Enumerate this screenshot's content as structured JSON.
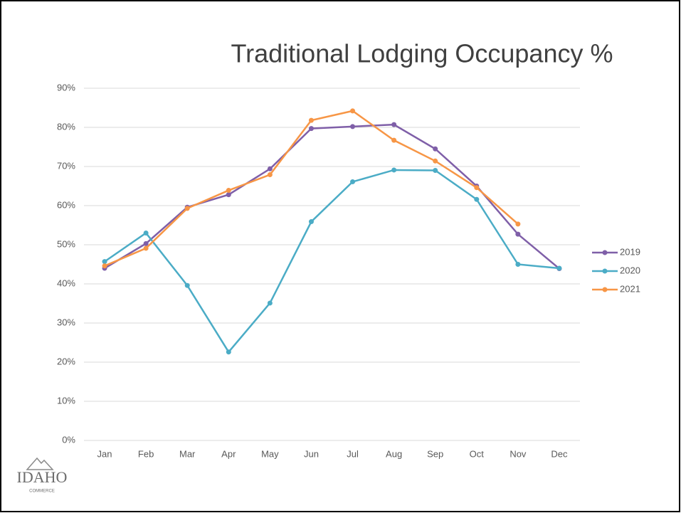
{
  "chart_data": {
    "type": "line",
    "title": "Traditional Lodging Occupancy %",
    "categories": [
      "Jan",
      "Feb",
      "Mar",
      "Apr",
      "May",
      "Jun",
      "Jul",
      "Aug",
      "Sep",
      "Oct",
      "Nov",
      "Dec"
    ],
    "series": [
      {
        "name": "2019",
        "color": "#7f5fa8",
        "values": [
          44,
          50.3,
          59.6,
          62.8,
          69.4,
          79.7,
          80.2,
          80.7,
          74.5,
          65,
          52.7,
          43.9
        ]
      },
      {
        "name": "2020",
        "color": "#4bacc6",
        "values": [
          45.7,
          53,
          39.6,
          22.6,
          35.1,
          55.9,
          66.1,
          69.1,
          69,
          61.6,
          45,
          44
        ]
      },
      {
        "name": "2021",
        "color": "#f79646",
        "values": [
          44.6,
          49.1,
          59.3,
          63.9,
          67.9,
          81.8,
          84.2,
          76.7,
          71.4,
          64.6,
          55.3,
          null
        ]
      }
    ],
    "ylim": [
      0,
      90
    ],
    "yticks": [
      {
        "value": 0,
        "label": "0%"
      },
      {
        "value": 10,
        "label": "10%"
      },
      {
        "value": 20,
        "label": "20%"
      },
      {
        "value": 30,
        "label": "30%"
      },
      {
        "value": 40,
        "label": "40%"
      },
      {
        "value": 50,
        "label": "50%"
      },
      {
        "value": 60,
        "label": "60%"
      },
      {
        "value": 70,
        "label": "70%"
      },
      {
        "value": 80,
        "label": "80%"
      },
      {
        "value": 90,
        "label": "90%"
      }
    ],
    "grid": true,
    "legend": "right"
  },
  "logo": {
    "name": "IDAHO",
    "subtitle": "COMMERCE"
  }
}
